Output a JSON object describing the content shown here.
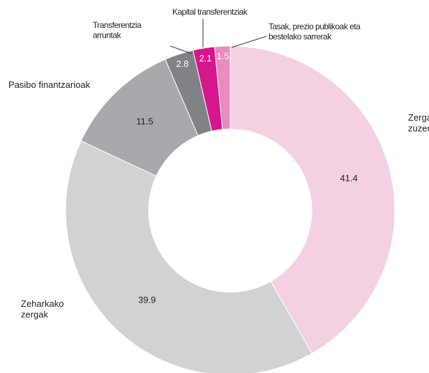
{
  "chart_data": {
    "type": "donut",
    "categories": [
      "Zerga\nzuzenak",
      "Zeharkako\nzergak",
      "Pasibo finantzarioak",
      "Transferentzia\narruntak",
      "Kapital transferentziak",
      "Tasak, prezio publikoak eta\nbestelako sarrerak"
    ],
    "values": [
      41.4,
      39.9,
      11.5,
      2.8,
      2.1,
      1.5
    ],
    "colors": [
      "#f4d0e3",
      "#d1d2d4",
      "#a7a9ac",
      "#808285",
      "#d6168d",
      "#e98bbd"
    ]
  }
}
